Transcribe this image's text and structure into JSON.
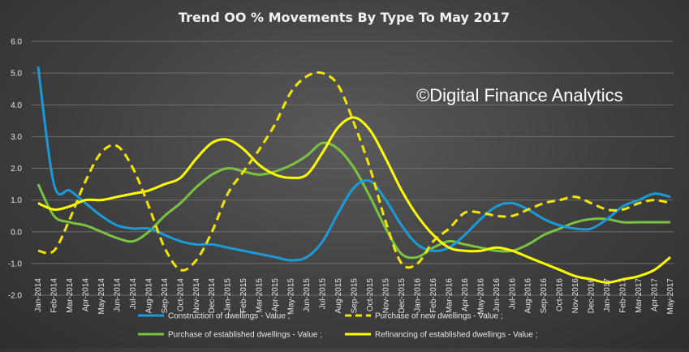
{
  "chart_data": {
    "type": "line",
    "title": "Trend OO % Movements By Type To May 2017",
    "watermark": "©Digital Finance Analytics",
    "xlabel": "",
    "ylabel": "",
    "ylim": [
      -2.0,
      6.0
    ],
    "y_ticks": [
      "-2.0",
      "-1.0",
      "0.0",
      "1.0",
      "2.0",
      "3.0",
      "4.0",
      "5.0",
      "6.0"
    ],
    "grid": true,
    "legend_position": "bottom",
    "categories": [
      "Jan-2014",
      "Feb-2014",
      "Mar-2014",
      "Apr-2014",
      "May-2014",
      "Jun-2014",
      "Jul-2014",
      "Aug-2014",
      "Sep-2014",
      "Oct-2014",
      "Nov-2014",
      "Dec-2014",
      "Jan-2015",
      "Feb-2015",
      "Mar-2015",
      "Apr-2015",
      "May-2015",
      "Jun-2015",
      "Jul-2015",
      "Aug-2015",
      "Sep-2015",
      "Oct-2015",
      "Nov-2015",
      "Dec-2015",
      "Jan-2016",
      "Feb-2016",
      "Mar-2016",
      "Apr-2016",
      "May-2016",
      "Jun-2016",
      "Jul-2016",
      "Aug-2016",
      "Sep-2016",
      "Oct-2016",
      "Nov-2016",
      "Dec-2016",
      "Jan-2017",
      "Feb-2017",
      "Mar-2017",
      "Apr-2017",
      "May-2017"
    ],
    "series": [
      {
        "name": "Construction of dwellings - Value ;",
        "color": "#1a9ad6",
        "dash": false,
        "values": [
          5.2,
          1.5,
          1.3,
          0.9,
          0.5,
          0.2,
          0.1,
          0.1,
          -0.1,
          -0.3,
          -0.4,
          -0.4,
          -0.5,
          -0.6,
          -0.7,
          -0.8,
          -0.9,
          -0.8,
          -0.3,
          0.6,
          1.4,
          1.6,
          1.0,
          0.2,
          -0.4,
          -0.6,
          -0.5,
          -0.1,
          0.4,
          0.8,
          0.9,
          0.7,
          0.4,
          0.2,
          0.1,
          0.1,
          0.4,
          0.8,
          1.0,
          1.2,
          1.1
        ]
      },
      {
        "name": "Purchase of new dwellings - Value ;",
        "color": "#f2e600",
        "dash": true,
        "values": [
          -0.6,
          -0.6,
          0.4,
          1.6,
          2.5,
          2.7,
          2.0,
          0.8,
          -0.5,
          -1.2,
          -0.9,
          0.0,
          1.2,
          1.9,
          2.6,
          3.4,
          4.4,
          4.9,
          5.0,
          4.6,
          3.4,
          2.0,
          0.3,
          -1.0,
          -1.0,
          -0.3,
          0.1,
          0.6,
          0.6,
          0.5,
          0.5,
          0.7,
          0.9,
          1.0,
          1.1,
          0.9,
          0.7,
          0.7,
          0.9,
          1.0,
          0.9
        ]
      },
      {
        "name": "Purchase of established dwellings - Value ;",
        "color": "#7cc242",
        "dash": false,
        "values": [
          1.5,
          0.5,
          0.3,
          0.2,
          0.0,
          -0.2,
          -0.3,
          0.0,
          0.5,
          0.9,
          1.4,
          1.8,
          2.0,
          1.9,
          1.8,
          1.9,
          2.1,
          2.4,
          2.8,
          2.6,
          2.0,
          1.1,
          0.1,
          -0.7,
          -0.8,
          -0.5,
          -0.3,
          -0.4,
          -0.5,
          -0.6,
          -0.6,
          -0.4,
          -0.1,
          0.1,
          0.3,
          0.4,
          0.4,
          0.3,
          0.3,
          0.3,
          0.3
        ]
      },
      {
        "name": "Refinancing of established dwellings - Value ;",
        "color": "#ffff00",
        "dash": false,
        "values": [
          0.9,
          0.7,
          0.8,
          1.0,
          1.0,
          1.1,
          1.2,
          1.3,
          1.5,
          1.7,
          2.3,
          2.8,
          2.9,
          2.6,
          2.1,
          1.8,
          1.7,
          1.8,
          2.5,
          3.3,
          3.6,
          3.2,
          2.3,
          1.3,
          0.5,
          -0.1,
          -0.5,
          -0.6,
          -0.6,
          -0.5,
          -0.6,
          -0.8,
          -1.0,
          -1.2,
          -1.4,
          -1.5,
          -1.6,
          -1.5,
          -1.4,
          -1.2,
          -0.8
        ]
      }
    ]
  }
}
